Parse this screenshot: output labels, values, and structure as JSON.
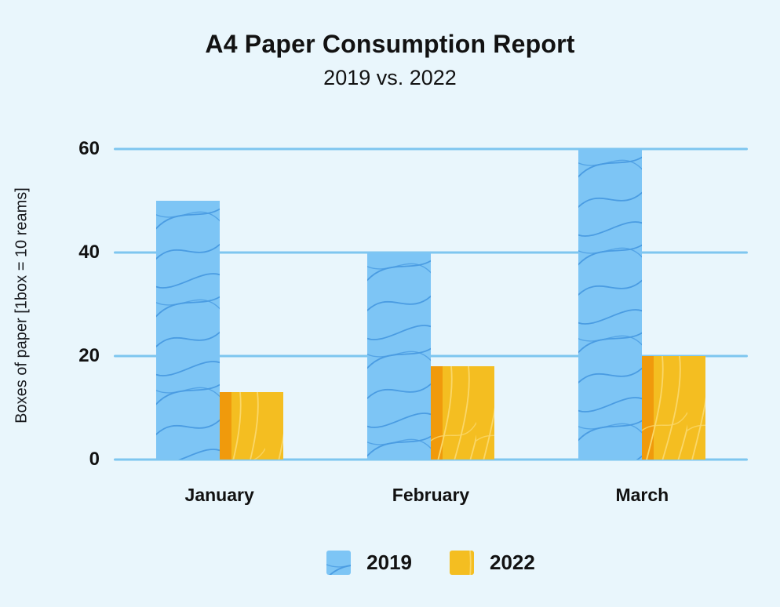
{
  "header": {
    "title": "A4 Paper Consumption Report",
    "subtitle": "2019 vs. 2022"
  },
  "chart_data": {
    "type": "bar",
    "title": "A4 Paper Consumption Report",
    "subtitle": "2019 vs. 2022",
    "categories": [
      "January",
      "February",
      "March"
    ],
    "series": [
      {
        "name": "2019",
        "values": [
          50,
          40,
          60
        ],
        "fill": "#7DC5F5",
        "texture_line": "#4A9CE2",
        "texture": "curved-lines"
      },
      {
        "name": "2022",
        "values": [
          13,
          18,
          20
        ],
        "fill": "#F4BE21",
        "texture_line": "#FAD769",
        "edge_stripe": "#F09A0C",
        "texture": "diagonal-lines"
      }
    ],
    "xlabel": "",
    "ylabel": "Boxes of paper [1box = 10 reams]",
    "ylim": [
      0,
      60
    ],
    "yticks": [
      0,
      20,
      40,
      60
    ],
    "grid": true,
    "gridline_color": "#7EC6EF",
    "background_color": "#E9F6FC",
    "text_color": "#121212",
    "legend_position": "bottom"
  }
}
